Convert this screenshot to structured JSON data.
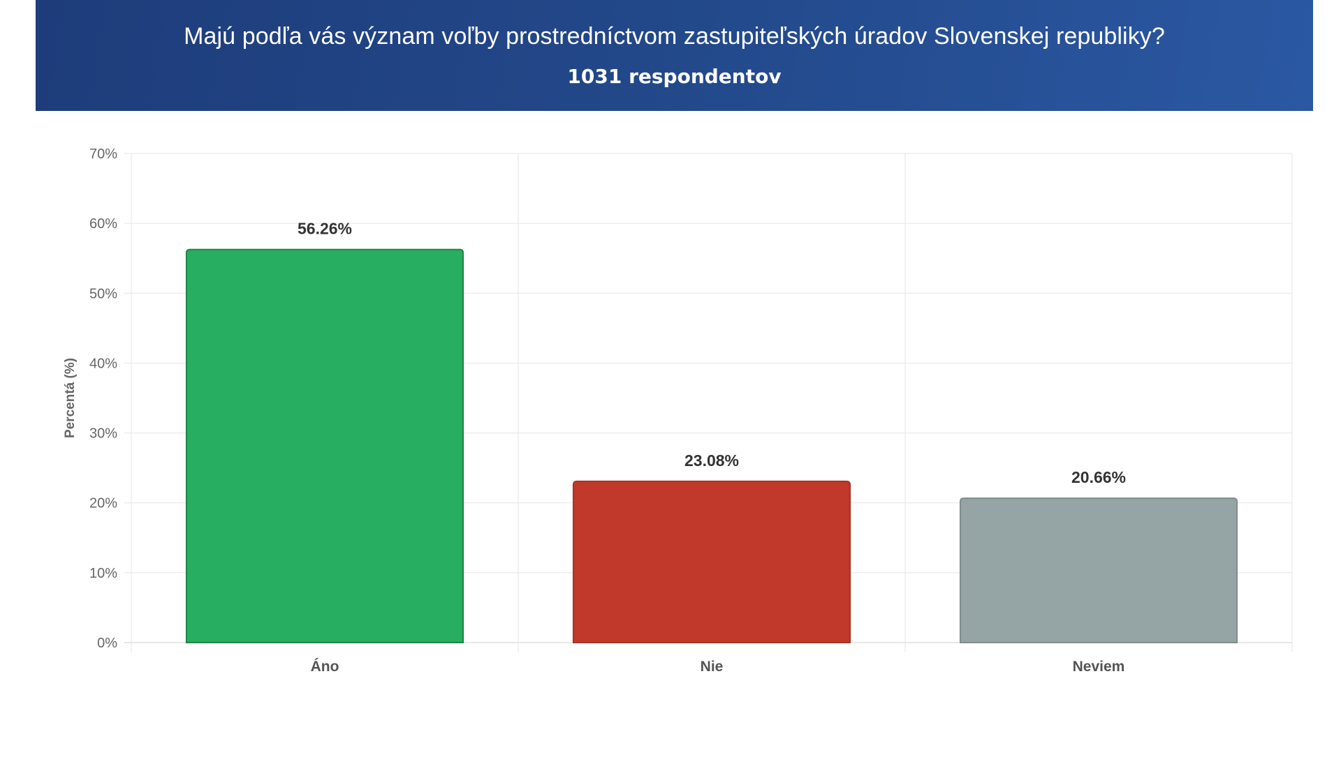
{
  "header": {
    "title": "Majú podľa vás význam voľby prostredníctvom zastupiteľských úradov Slovenskej republiky?",
    "subtitle": "1031 respondentov"
  },
  "chart_data": {
    "type": "bar",
    "title": "Majú podľa vás význam voľby prostredníctvom zastupiteľských úradov Slovenskej republiky?",
    "subtitle": "1031 respondentov",
    "categories": [
      "Áno",
      "Nie",
      "Neviem"
    ],
    "values": [
      56.26,
      23.08,
      20.66
    ],
    "value_labels": [
      "56.26%",
      "23.08%",
      "20.66%"
    ],
    "colors": [
      "#27ae60",
      "#c0392b",
      "#95a5a6"
    ],
    "border_colors": [
      "#1e8449",
      "#a93226",
      "#7f8c8d"
    ],
    "ylabel": "Percentá (%)",
    "xlabel": "",
    "ylim": [
      0,
      70
    ],
    "yticks": [
      0,
      10,
      20,
      30,
      40,
      50,
      60,
      70
    ],
    "ytick_labels": [
      "0%",
      "10%",
      "20%",
      "30%",
      "40%",
      "50%",
      "60%",
      "70%"
    ],
    "grid": true,
    "legend": "none"
  }
}
